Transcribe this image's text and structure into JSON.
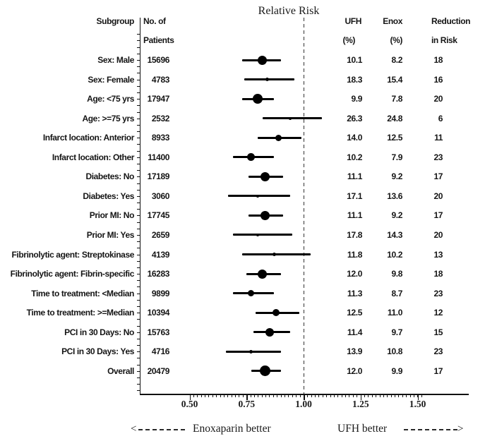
{
  "title": "Relative Risk",
  "columns": {
    "subgroup": "Subgroup",
    "patients_line1": "No. of",
    "patients_line2": "Patients",
    "ufh_line1": "UFH",
    "ufh_line2": "(%)",
    "enox_line1": "Enox",
    "enox_line2": "(%)",
    "reduction_line1": "Reduction",
    "reduction_line2": "in Risk"
  },
  "footer": {
    "left_label": "Enoxaparin better",
    "right_label": "UFH  better",
    "left_arrow": "<",
    "right_arrow": ">"
  },
  "colors": {
    "ink": "#111111",
    "background": "#ffffff"
  },
  "chart_data": {
    "type": "forest",
    "title": "Relative Risk",
    "x_axis": {
      "tick_values": [
        0.5,
        0.75,
        1.0,
        1.25,
        1.5
      ],
      "tick_labels": [
        "0.50",
        "0.75",
        "1.00",
        "1.25",
        "1.50"
      ],
      "reference_line": 1.0,
      "range": [
        0.29,
        1.72
      ],
      "minor_tick_step": 0.0167
    },
    "rows": [
      {
        "subgroup": "Sex: Male",
        "patients": "15696",
        "ufh": "10.1",
        "enox": "8.2",
        "reduction": "18",
        "rr": 0.82,
        "ci_low": 0.73,
        "ci_high": 0.9,
        "marker": 13
      },
      {
        "subgroup": "Sex: Female",
        "patients": "4783",
        "ufh": "18.3",
        "enox": "15.4",
        "reduction": "16",
        "rr": 0.84,
        "ci_low": 0.74,
        "ci_high": 0.96,
        "marker": 5
      },
      {
        "subgroup": "Age: <75 yrs",
        "patients": "17947",
        "ufh": "9.9",
        "enox": "7.8",
        "reduction": "20",
        "rr": 0.8,
        "ci_low": 0.73,
        "ci_high": 0.87,
        "marker": 14
      },
      {
        "subgroup": "Age: >=75 yrs",
        "patients": "2532",
        "ufh": "26.3",
        "enox": "24.8",
        "reduction": "6",
        "rr": 0.94,
        "ci_low": 0.82,
        "ci_high": 1.08,
        "marker": 4
      },
      {
        "subgroup": "Infarct location: Anterior",
        "patients": "8933",
        "ufh": "14.0",
        "enox": "12.5",
        "reduction": "11",
        "rr": 0.89,
        "ci_low": 0.8,
        "ci_high": 0.99,
        "marker": 9
      },
      {
        "subgroup": "Infarct location: Other",
        "patients": "11400",
        "ufh": "10.2",
        "enox": "7.9",
        "reduction": "23",
        "rr": 0.77,
        "ci_low": 0.69,
        "ci_high": 0.87,
        "marker": 11
      },
      {
        "subgroup": "Diabetes: No",
        "patients": "17189",
        "ufh": "11.1",
        "enox": "9.2",
        "reduction": "17",
        "rr": 0.83,
        "ci_low": 0.76,
        "ci_high": 0.91,
        "marker": 13
      },
      {
        "subgroup": "Diabetes: Yes",
        "patients": "3060",
        "ufh": "17.1",
        "enox": "13.6",
        "reduction": "20",
        "rr": 0.8,
        "ci_low": 0.67,
        "ci_high": 0.94,
        "marker": 4
      },
      {
        "subgroup": "Prior MI: No",
        "patients": "17745",
        "ufh": "11.1",
        "enox": "9.2",
        "reduction": "17",
        "rr": 0.83,
        "ci_low": 0.76,
        "ci_high": 0.91,
        "marker": 13
      },
      {
        "subgroup": "Prior MI: Yes",
        "patients": "2659",
        "ufh": "17.8",
        "enox": "14.3",
        "reduction": "20",
        "rr": 0.8,
        "ci_low": 0.69,
        "ci_high": 0.95,
        "marker": 4
      },
      {
        "subgroup": "Fibrinolytic agent: Streptokinase",
        "patients": "4139",
        "ufh": "11.8",
        "enox": "10.2",
        "reduction": "13",
        "rr": 0.87,
        "ci_low": 0.73,
        "ci_high": 1.03,
        "marker": 5
      },
      {
        "subgroup": "Fibrinolytic agent: Fibrin-specific",
        "patients": "16283",
        "ufh": "12.0",
        "enox": "9.8",
        "reduction": "18",
        "rr": 0.82,
        "ci_low": 0.75,
        "ci_high": 0.9,
        "marker": 13
      },
      {
        "subgroup": "Time to treatment: <Median",
        "patients": "9899",
        "ufh": "11.3",
        "enox": "8.7",
        "reduction": "23",
        "rr": 0.77,
        "ci_low": 0.69,
        "ci_high": 0.87,
        "marker": 9
      },
      {
        "subgroup": "Time to treatment: >=Median",
        "patients": "10394",
        "ufh": "12.5",
        "enox": "11.0",
        "reduction": "12",
        "rr": 0.88,
        "ci_low": 0.79,
        "ci_high": 0.98,
        "marker": 10
      },
      {
        "subgroup": "PCI in 30 Days: No",
        "patients": "15763",
        "ufh": "11.4",
        "enox": "9.7",
        "reduction": "15",
        "rr": 0.85,
        "ci_low": 0.78,
        "ci_high": 0.94,
        "marker": 12
      },
      {
        "subgroup": "PCI in 30 Days: Yes",
        "patients": "4716",
        "ufh": "13.9",
        "enox": "10.8",
        "reduction": "23",
        "rr": 0.77,
        "ci_low": 0.66,
        "ci_high": 0.9,
        "marker": 5
      },
      {
        "subgroup": "Overall",
        "patients": "20479",
        "ufh": "12.0",
        "enox": "9.9",
        "reduction": "17",
        "rr": 0.83,
        "ci_low": 0.77,
        "ci_high": 0.9,
        "marker": 15
      }
    ]
  }
}
